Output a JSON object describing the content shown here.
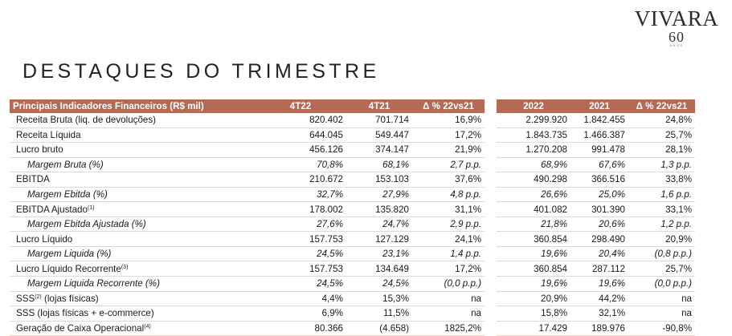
{
  "brand": {
    "name": "VIVARA",
    "anniversary": "60",
    "anniversary_sub": "ANOS"
  },
  "page_title": "DESTAQUES DO TRIMESTRE",
  "quarter_table": {
    "headers": [
      "Principais Indicadores Financeiros (R$ mil)",
      "4T22",
      "4T21",
      "Δ % 22vs21"
    ],
    "rows": [
      {
        "label": "Receita Bruta (liq. de devoluções)",
        "sup": "",
        "italic": false,
        "v1": "820.402",
        "v2": "701.714",
        "delta": "16,9%"
      },
      {
        "label": "Receita Líquida",
        "sup": "",
        "italic": false,
        "v1": "644.045",
        "v2": "549.447",
        "delta": "17,2%"
      },
      {
        "label": "Lucro bruto",
        "sup": "",
        "italic": false,
        "v1": "456.126",
        "v2": "374.147",
        "delta": "21,9%"
      },
      {
        "label": "Margem Bruta (%)",
        "sup": "",
        "italic": true,
        "v1": "70,8%",
        "v2": "68,1%",
        "delta": "2,7 p.p."
      },
      {
        "label": "EBITDA",
        "sup": "",
        "italic": false,
        "v1": "210.672",
        "v2": "153.103",
        "delta": "37,6%"
      },
      {
        "label": "Margem Ebitda (%)",
        "sup": "",
        "italic": true,
        "v1": "32,7%",
        "v2": "27,9%",
        "delta": "4,8 p.p."
      },
      {
        "label": "EBITDA Ajustado",
        "sup": "(1)",
        "italic": false,
        "v1": "178.002",
        "v2": "135.820",
        "delta": "31,1%"
      },
      {
        "label": "Margem Ebitda Ajustada (%)",
        "sup": "",
        "italic": true,
        "v1": "27,6%",
        "v2": "24,7%",
        "delta": "2,9 p.p."
      },
      {
        "label": "Lucro Líquido",
        "sup": "",
        "italic": false,
        "v1": "157.753",
        "v2": "127.129",
        "delta": "24,1%"
      },
      {
        "label": "Margem Liquida (%)",
        "sup": "",
        "italic": true,
        "v1": "24,5%",
        "v2": "23,1%",
        "delta": "1,4 p.p."
      },
      {
        "label": "Lucro Líquido Recorrente",
        "sup": "(3)",
        "italic": false,
        "v1": "157.753",
        "v2": "134.649",
        "delta": "17,2%"
      },
      {
        "label": "Margem Liquida Recorrente (%)",
        "sup": "",
        "italic": true,
        "v1": "24,5%",
        "v2": "24,5%",
        "delta": "(0,0 p.p.)"
      },
      {
        "label": "SSS",
        "sup": "(2)",
        "suffix": " (lojas físicas)",
        "italic": false,
        "v1": "4,4%",
        "v2": "15,3%",
        "delta": "na"
      },
      {
        "label": "SSS (lojas físicas + e-commerce)",
        "sup": "",
        "italic": false,
        "v1": "6,9%",
        "v2": "11,5%",
        "delta": "na"
      },
      {
        "label": "Geração de Caixa Operacional",
        "sup": "(4)",
        "italic": false,
        "v1": "80.366",
        "v2": "(4.658)",
        "delta": "1825,2%"
      }
    ]
  },
  "year_table": {
    "headers": [
      "2022",
      "2021",
      "Δ % 22vs21"
    ],
    "rows": [
      {
        "v1": "2.299.920",
        "v2": "1.842.455",
        "delta": "24,8%"
      },
      {
        "v1": "1.843.735",
        "v2": "1.466.387",
        "delta": "25,7%"
      },
      {
        "v1": "1.270.208",
        "v2": "991.478",
        "delta": "28,1%"
      },
      {
        "v1": "68,9%",
        "v2": "67,6%",
        "delta": "1,3 p.p."
      },
      {
        "v1": "490.298",
        "v2": "366.516",
        "delta": "33,8%"
      },
      {
        "v1": "26,6%",
        "v2": "25,0%",
        "delta": "1,6 p.p."
      },
      {
        "v1": "401.082",
        "v2": "301.390",
        "delta": "33,1%"
      },
      {
        "v1": "21,8%",
        "v2": "20,6%",
        "delta": "1,2 p.p."
      },
      {
        "v1": "360.854",
        "v2": "298.490",
        "delta": "20,9%"
      },
      {
        "v1": "19,6%",
        "v2": "20,4%",
        "delta": "(0,8 p.p.)"
      },
      {
        "v1": "360.854",
        "v2": "287.112",
        "delta": "25,7%"
      },
      {
        "v1": "19,6%",
        "v2": "19,6%",
        "delta": "(0,0 p.p.)"
      },
      {
        "v1": "20,9%",
        "v2": "44,2%",
        "delta": "na"
      },
      {
        "v1": "15,8%",
        "v2": "32,1%",
        "delta": "na"
      },
      {
        "v1": "17.429",
        "v2": "189.976",
        "delta": "-90,8%"
      }
    ]
  }
}
